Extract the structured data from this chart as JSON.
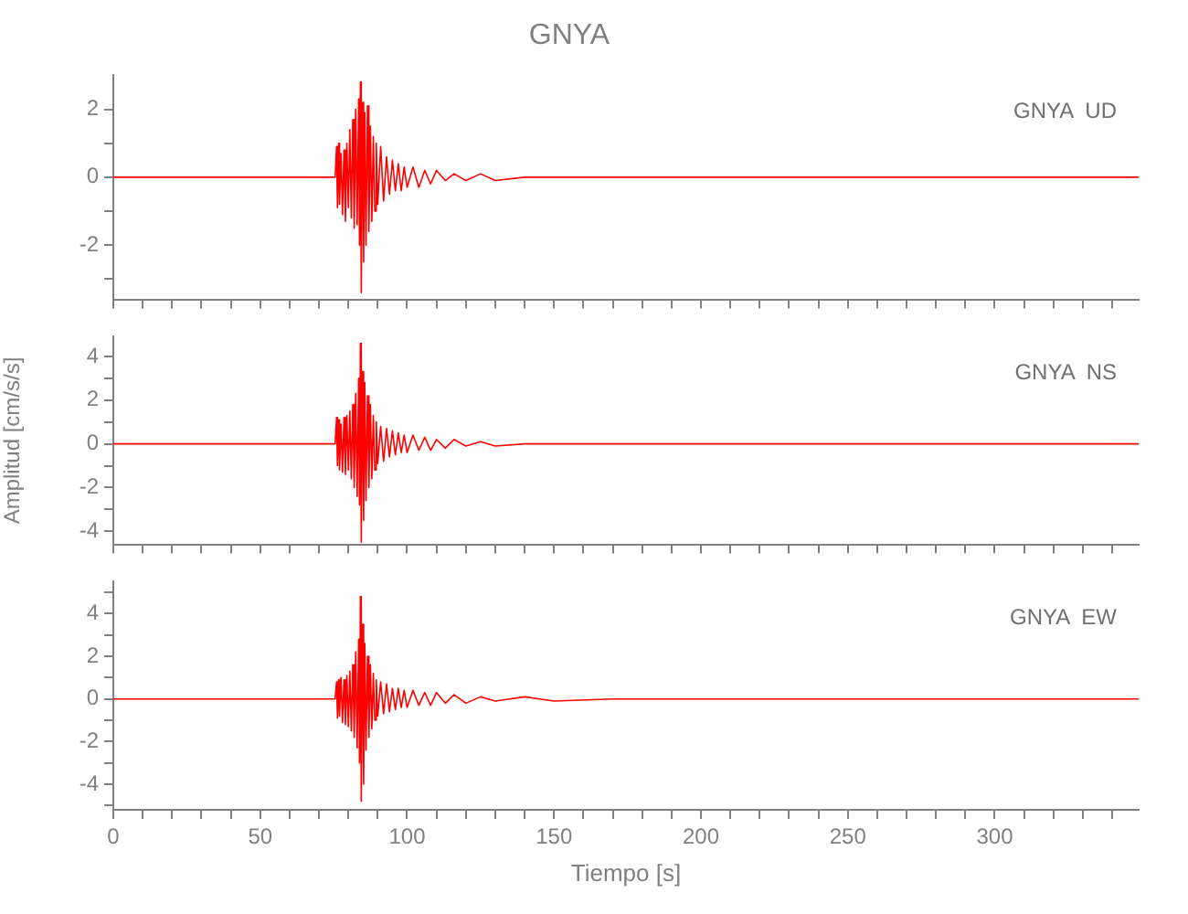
{
  "chart_data": [
    {
      "type": "line",
      "title": "GNYA",
      "annotations": [
        "GNYA  UD"
      ],
      "tick_labels": "y",
      "grid": false,
      "x": [
        0,
        75.5,
        76,
        76.3,
        76.7,
        77,
        77.5,
        78,
        78.5,
        79,
        79.5,
        80,
        80.5,
        81,
        81.5,
        82,
        82.5,
        83,
        83.5,
        83.8,
        84.1,
        84.4,
        84.8,
        85.2,
        85.6,
        86,
        86.5,
        87,
        87.5,
        88,
        88.5,
        89,
        89.5,
        90,
        91,
        92,
        93,
        94,
        95,
        96,
        97,
        98,
        99,
        100,
        102,
        104,
        106,
        108,
        110,
        113,
        116,
        120,
        125,
        130,
        140,
        150,
        170,
        200,
        250,
        300,
        349
      ],
      "series": [
        {
          "color": "#ff0000",
          "values": [
            0,
            0,
            0.9,
            -0.9,
            1.0,
            -0.8,
            0.7,
            -1.1,
            0.8,
            -1.3,
            1.0,
            -0.9,
            1.4,
            -1.2,
            1.7,
            -1.5,
            2.0,
            -1.4,
            2.3,
            -2.0,
            2.8,
            -3.4,
            2.2,
            -2.5,
            1.9,
            -2.0,
            2.1,
            -1.6,
            1.5,
            -1.3,
            1.2,
            -1.0,
            1.0,
            -0.8,
            0.9,
            -0.7,
            0.6,
            -0.5,
            0.5,
            -0.4,
            0.4,
            -0.4,
            0.3,
            -0.3,
            0.3,
            -0.3,
            0.2,
            -0.2,
            0.2,
            -0.1,
            0.1,
            -0.1,
            0.1,
            -0.1,
            0,
            0,
            0,
            0,
            0,
            0,
            0
          ]
        }
      ],
      "xlim": [
        0,
        349
      ],
      "xticks": [
        0,
        {
          "value": 10,
          "label": null
        },
        {
          "value": 20,
          "label": null
        },
        {
          "value": 30,
          "label": null
        },
        {
          "value": 40,
          "label": null
        },
        50,
        {
          "value": 60,
          "label": null
        },
        {
          "value": 70,
          "label": null
        },
        {
          "value": 80,
          "label": null
        },
        {
          "value": 90,
          "label": null
        },
        100,
        {
          "value": 110,
          "label": null
        },
        {
          "value": 120,
          "label": null
        },
        {
          "value": 130,
          "label": null
        },
        {
          "value": 140,
          "label": null
        },
        150,
        {
          "value": 160,
          "label": null
        },
        {
          "value": 170,
          "label": null
        },
        {
          "value": 180,
          "label": null
        },
        {
          "value": 190,
          "label": null
        },
        200,
        {
          "value": 210,
          "label": null
        },
        {
          "value": 220,
          "label": null
        },
        {
          "value": 230,
          "label": null
        },
        {
          "value": 240,
          "label": null
        },
        250,
        {
          "value": 260,
          "label": null
        },
        {
          "value": 270,
          "label": null
        },
        {
          "value": 280,
          "label": null
        },
        {
          "value": 290,
          "label": null
        },
        300,
        {
          "value": 310,
          "label": null
        },
        {
          "value": 320,
          "label": null
        },
        {
          "value": 330,
          "label": null
        },
        {
          "value": 340,
          "label": null
        }
      ],
      "ylim": [
        -3.6,
        3
      ],
      "yticks": [
        {
          "value": -3,
          "label": null
        },
        -2,
        {
          "value": -1,
          "label": null
        },
        0,
        {
          "value": 1,
          "label": null
        },
        2
      ]
    },
    {
      "type": "line",
      "ylabel": "Amplitud [cm/s/s]",
      "annotations": [
        "GNYA  NS"
      ],
      "tick_labels": "y",
      "grid": false,
      "x": [
        0,
        75.5,
        76,
        76.3,
        76.7,
        77,
        77.5,
        78,
        78.5,
        79,
        79.5,
        80,
        80.5,
        81,
        81.5,
        82,
        82.5,
        83,
        83.5,
        83.8,
        84.1,
        84.4,
        84.8,
        85.2,
        85.6,
        86,
        86.5,
        87,
        87.5,
        88,
        88.5,
        89,
        89.5,
        90,
        91,
        92,
        93,
        94,
        95,
        96,
        97,
        98,
        99,
        100,
        102,
        104,
        106,
        108,
        110,
        113,
        116,
        120,
        125,
        130,
        140,
        150,
        170,
        200,
        250,
        300,
        349
      ],
      "series": [
        {
          "color": "#ff0000",
          "values": [
            0,
            0,
            1.2,
            -1.0,
            1.1,
            -1.2,
            0.9,
            -1.3,
            1.2,
            -1.4,
            1.3,
            -1.2,
            1.5,
            -1.6,
            1.8,
            -2.0,
            2.3,
            -2.4,
            3.0,
            -2.8,
            4.6,
            -4.5,
            3.3,
            -3.5,
            2.8,
            -2.6,
            2.2,
            -2.0,
            1.8,
            -1.6,
            1.3,
            -1.2,
            1.0,
            -0.9,
            0.8,
            -0.8,
            0.7,
            -0.6,
            0.6,
            -0.5,
            0.5,
            -0.4,
            0.4,
            -0.4,
            0.4,
            -0.3,
            0.3,
            -0.3,
            0.2,
            -0.2,
            0.2,
            -0.1,
            0.1,
            -0.1,
            0,
            0,
            0,
            0,
            0,
            0,
            0
          ]
        }
      ],
      "xlim": [
        0,
        349
      ],
      "xticks": [
        0,
        {
          "value": 10,
          "label": null
        },
        {
          "value": 20,
          "label": null
        },
        {
          "value": 30,
          "label": null
        },
        {
          "value": 40,
          "label": null
        },
        50,
        {
          "value": 60,
          "label": null
        },
        {
          "value": 70,
          "label": null
        },
        {
          "value": 80,
          "label": null
        },
        {
          "value": 90,
          "label": null
        },
        100,
        {
          "value": 110,
          "label": null
        },
        {
          "value": 120,
          "label": null
        },
        {
          "value": 130,
          "label": null
        },
        {
          "value": 140,
          "label": null
        },
        150,
        {
          "value": 160,
          "label": null
        },
        {
          "value": 170,
          "label": null
        },
        {
          "value": 180,
          "label": null
        },
        {
          "value": 190,
          "label": null
        },
        200,
        {
          "value": 210,
          "label": null
        },
        {
          "value": 220,
          "label": null
        },
        {
          "value": 230,
          "label": null
        },
        {
          "value": 240,
          "label": null
        },
        250,
        {
          "value": 260,
          "label": null
        },
        {
          "value": 270,
          "label": null
        },
        {
          "value": 280,
          "label": null
        },
        {
          "value": 290,
          "label": null
        },
        300,
        {
          "value": 310,
          "label": null
        },
        {
          "value": 320,
          "label": null
        },
        {
          "value": 330,
          "label": null
        },
        {
          "value": 340,
          "label": null
        }
      ],
      "ylim": [
        -4.6,
        4.9
      ],
      "yticks": [
        -4,
        {
          "value": -3,
          "label": null
        },
        -2,
        {
          "value": -1,
          "label": null
        },
        0,
        {
          "value": 1,
          "label": null
        },
        2,
        {
          "value": 3,
          "label": null
        },
        4
      ]
    },
    {
      "type": "line",
      "xlabel": "Tiempo [s]",
      "annotations": [
        "GNYA  EW"
      ],
      "grid": false,
      "x": [
        0,
        75.5,
        76,
        76.3,
        76.7,
        77,
        77.5,
        78,
        78.5,
        79,
        79.5,
        80,
        80.5,
        81,
        81.5,
        82,
        82.5,
        83,
        83.5,
        83.8,
        84.1,
        84.4,
        84.8,
        85.2,
        85.6,
        86,
        86.5,
        87,
        87.5,
        88,
        88.5,
        89,
        89.5,
        90,
        91,
        92,
        93,
        94,
        95,
        96,
        97,
        98,
        99,
        100,
        102,
        104,
        106,
        108,
        110,
        113,
        116,
        120,
        125,
        130,
        140,
        150,
        170,
        200,
        250,
        300,
        349
      ],
      "series": [
        {
          "color": "#ff0000",
          "values": [
            0,
            0,
            0.8,
            -0.9,
            0.9,
            -0.8,
            1.0,
            -1.1,
            0.9,
            -1.2,
            1.1,
            -1.3,
            1.3,
            -1.5,
            1.6,
            -1.8,
            2.2,
            -2.3,
            2.8,
            -3.0,
            4.8,
            -4.8,
            3.5,
            -4.0,
            2.6,
            -2.4,
            2.0,
            -1.8,
            1.6,
            -1.4,
            1.2,
            -1.0,
            0.9,
            -0.8,
            0.8,
            -0.7,
            0.7,
            -0.6,
            0.5,
            -0.5,
            0.5,
            -0.4,
            0.4,
            -0.4,
            0.4,
            -0.3,
            0.3,
            -0.3,
            0.3,
            -0.2,
            0.2,
            -0.2,
            0.1,
            -0.1,
            0.1,
            -0.1,
            0,
            0,
            0,
            0,
            0
          ]
        }
      ],
      "xlim": [
        0,
        349
      ],
      "xticks": [
        0,
        {
          "value": 10,
          "label": null
        },
        {
          "value": 20,
          "label": null
        },
        {
          "value": 30,
          "label": null
        },
        {
          "value": 40,
          "label": null
        },
        50,
        {
          "value": 60,
          "label": null
        },
        {
          "value": 70,
          "label": null
        },
        {
          "value": 80,
          "label": null
        },
        {
          "value": 90,
          "label": null
        },
        100,
        {
          "value": 110,
          "label": null
        },
        {
          "value": 120,
          "label": null
        },
        {
          "value": 130,
          "label": null
        },
        {
          "value": 140,
          "label": null
        },
        150,
        {
          "value": 160,
          "label": null
        },
        {
          "value": 170,
          "label": null
        },
        {
          "value": 180,
          "label": null
        },
        {
          "value": 190,
          "label": null
        },
        200,
        {
          "value": 210,
          "label": null
        },
        {
          "value": 220,
          "label": null
        },
        {
          "value": 230,
          "label": null
        },
        {
          "value": 240,
          "label": null
        },
        250,
        {
          "value": 260,
          "label": null
        },
        {
          "value": 270,
          "label": null
        },
        {
          "value": 280,
          "label": null
        },
        {
          "value": 290,
          "label": null
        },
        300,
        {
          "value": 310,
          "label": null
        },
        {
          "value": 320,
          "label": null
        },
        {
          "value": 330,
          "label": null
        },
        {
          "value": 340,
          "label": null
        }
      ],
      "ylim": [
        -5.2,
        5.5
      ],
      "yticks": [
        {
          "value": -5,
          "label": null
        },
        -4,
        {
          "value": -3,
          "label": null
        },
        -2,
        {
          "value": -1,
          "label": null
        },
        0,
        {
          "value": 1,
          "label": null
        },
        2,
        {
          "value": 3,
          "label": null
        },
        4,
        {
          "value": 5,
          "label": null
        }
      ]
    }
  ]
}
